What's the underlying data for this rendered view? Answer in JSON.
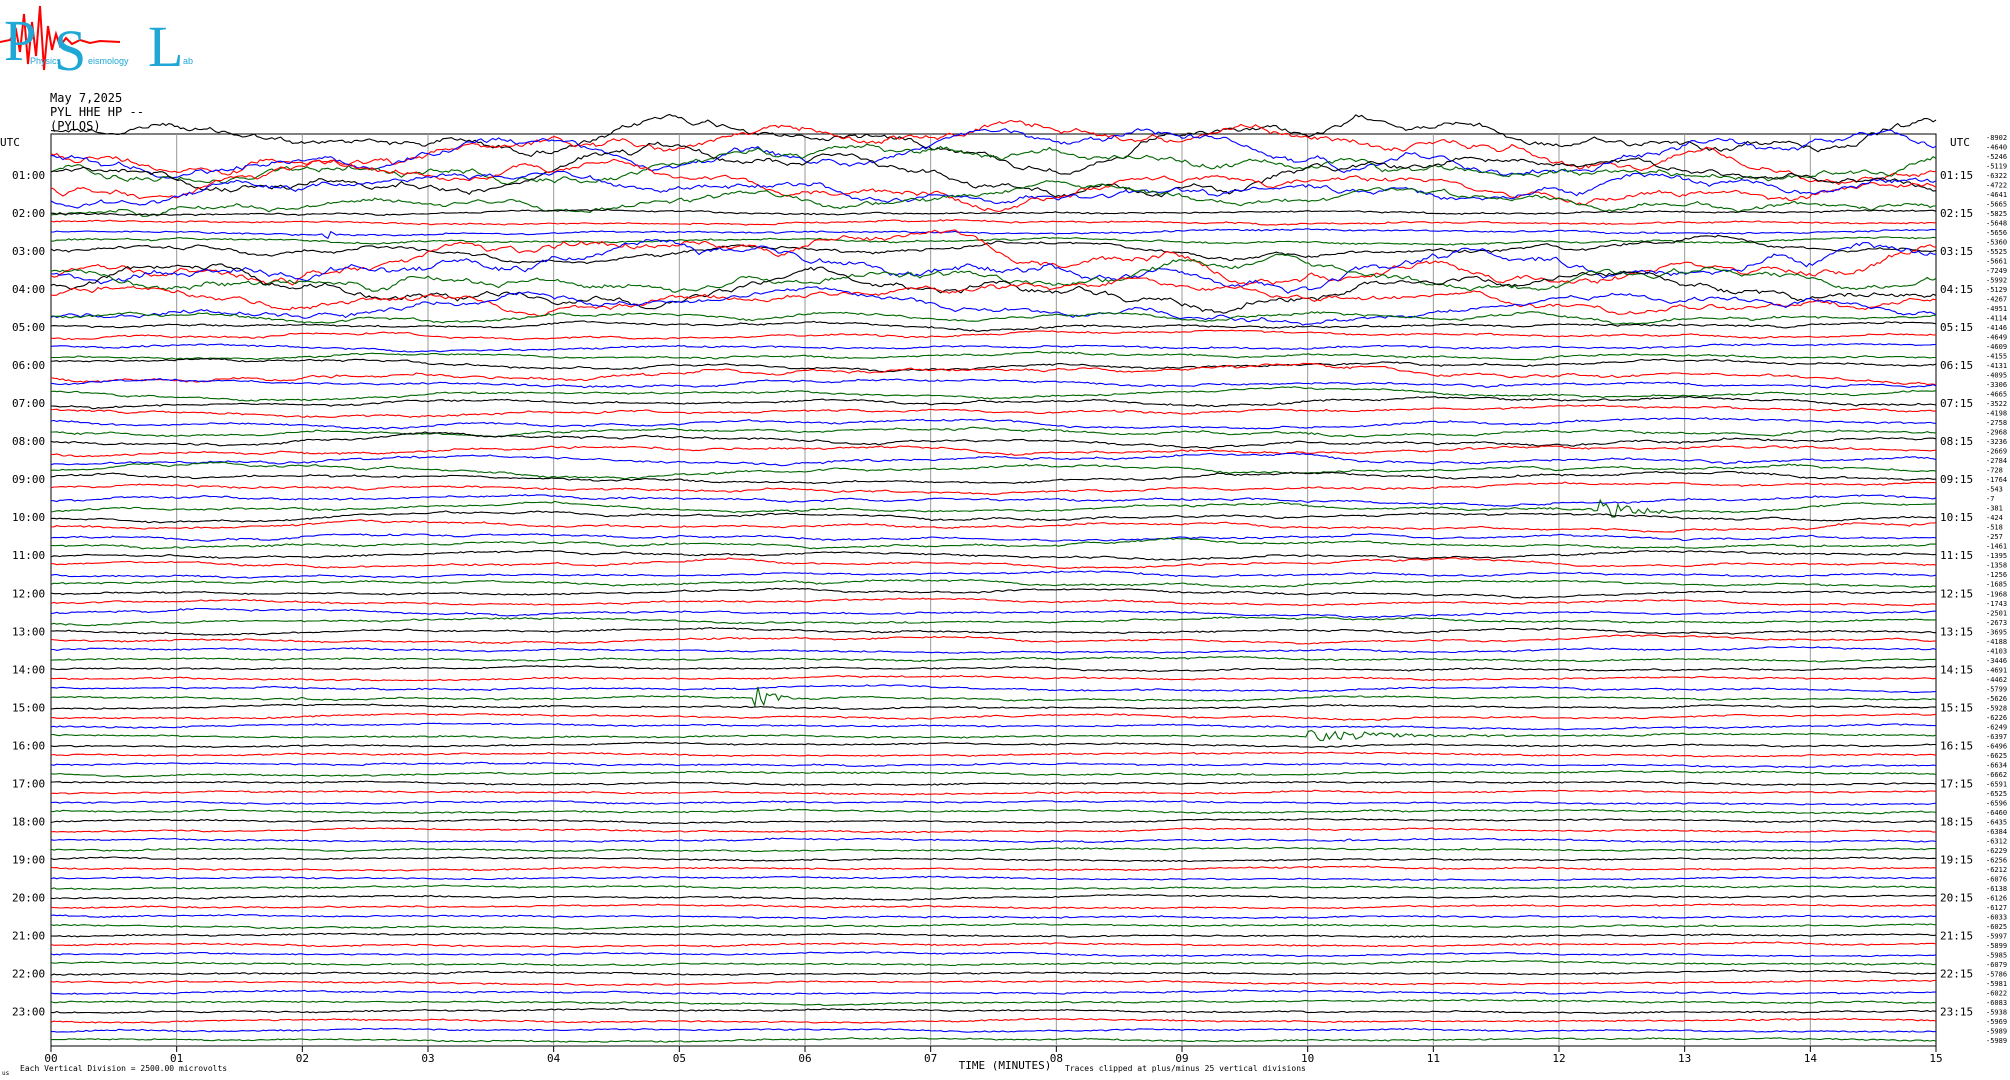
{
  "logo": {
    "letters": [
      "P",
      "S",
      "L"
    ],
    "words": [
      "Physics",
      "eismology",
      "ab"
    ],
    "colors": {
      "main": "#1fa7d6",
      "trace": "#ff0000"
    }
  },
  "header": {
    "date": "May 7,2025",
    "station": "PYL HHE HP --",
    "location": "(PYLOS)"
  },
  "chart_data": {
    "type": "line",
    "subtype": "helicorder",
    "left_axis_label": "UTC",
    "right_axis_label": "UTC",
    "left_times": [
      "01:00",
      "02:00",
      "03:00",
      "04:00",
      "05:00",
      "06:00",
      "07:00",
      "08:00",
      "09:00",
      "10:00",
      "11:00",
      "12:00",
      "13:00",
      "14:00",
      "15:00",
      "16:00",
      "17:00",
      "18:00",
      "19:00",
      "20:00",
      "21:00",
      "22:00",
      "23:00"
    ],
    "right_times": [
      "01:15",
      "02:15",
      "03:15",
      "04:15",
      "05:15",
      "06:15",
      "07:15",
      "08:15",
      "09:15",
      "10:15",
      "11:15",
      "12:15",
      "13:15",
      "14:15",
      "15:15",
      "16:15",
      "17:15",
      "18:15",
      "19:15",
      "20:15",
      "21:15",
      "22:15",
      "23:15"
    ],
    "x_ticks": [
      "00",
      "01",
      "02",
      "03",
      "04",
      "05",
      "06",
      "07",
      "08",
      "09",
      "10",
      "11",
      "12",
      "13",
      "14",
      "15"
    ],
    "xlabel": "TIME (MINUTES)",
    "note_left": "Each Vertical Division = 2500.00 microvolts",
    "note_right": "Traces clipped at plus/minus 25 vertical divisions",
    "corner_label": "us",
    "xlim": [
      0,
      15
    ],
    "traces_per_hour": 4,
    "trace_count": 96,
    "color_cycle": [
      "#000000",
      "#ff0000",
      "#0000ff",
      "#006600"
    ],
    "offsets": [
      -8902,
      -4640,
      -5246,
      -5119,
      -6322,
      -4722,
      -4641,
      -5665,
      -5825,
      -5648,
      -5656,
      -5360,
      -5525,
      -5661,
      -7249,
      -5992,
      -5129,
      -4267,
      -4951,
      -4114,
      -4146,
      -4649,
      -4609,
      -4155,
      -4131,
      -4095,
      -3306,
      -4665,
      -3522,
      -4198,
      -2758,
      -2968,
      -3236,
      -2669,
      -2784,
      -728,
      -1764,
      -543,
      -7,
      -381,
      -424,
      -518,
      -257,
      -1461,
      -1395,
      -1358,
      -1256,
      -1685,
      -1968,
      -1743,
      -2501,
      -2673,
      -3695,
      -4188,
      -4103,
      -3446,
      -4691,
      -4462,
      -5799,
      -5626,
      -5928,
      -6226,
      -6249,
      -6397,
      -6496,
      -6625,
      -6634,
      -6662,
      -6591,
      -6525,
      -6596,
      -6460,
      -6435,
      -6384,
      -6312,
      -6229,
      -6256,
      -6212,
      -6076,
      -6138,
      -6126,
      -6127,
      -6033,
      -6025,
      -5997,
      -5899,
      -5985,
      -6079,
      -5786,
      -5981,
      -6022,
      -6083,
      -5938,
      -5969,
      -5989,
      -5989
    ],
    "activity": [
      13,
      13,
      13,
      12,
      12,
      12,
      11,
      10,
      1.5,
      1.5,
      1.5,
      2.5,
      6,
      14,
      14,
      12,
      12,
      10,
      9,
      5,
      3,
      2.5,
      2.5,
      2.5,
      3,
      5,
      3,
      2.5,
      3,
      3,
      3,
      3.5,
      3.5,
      3.5,
      3.5,
      3.5,
      3,
      3,
      3,
      3,
      3,
      3,
      2.5,
      2.5,
      2.5,
      2.5,
      2,
      2,
      2,
      2,
      2,
      2,
      2,
      2,
      1.5,
      1.5,
      1.5,
      1.5,
      1.5,
      1.5,
      1.5,
      1.5,
      1.2,
      1.2,
      1.2,
      1.2,
      1.2,
      1.2,
      1.2,
      1.2,
      1.2,
      1.2,
      1.2,
      1.2,
      1.1,
      1.1,
      1.1,
      1.1,
      1.1,
      1.1,
      1.1,
      1.1,
      1.1,
      1.1,
      1.1,
      1.1,
      1.1,
      1.1,
      1.1,
      1.1,
      1.1,
      1.1,
      1.1,
      1.1,
      1.1,
      1.1
    ],
    "events": [
      {
        "trace": 10,
        "minute": 2.18,
        "amplitude": 8,
        "duration": 0.1
      },
      {
        "trace": 16,
        "minute": 3.2,
        "amplitude": 5,
        "duration": 0.1
      },
      {
        "trace": 39,
        "minute": 12.3,
        "amplitude": 12,
        "duration": 0.6
      },
      {
        "trace": 59,
        "minute": 5.6,
        "amplitude": 14,
        "duration": 0.3
      },
      {
        "trace": 59,
        "minute": 1.97,
        "amplitude": 5,
        "duration": 0.08
      },
      {
        "trace": 63,
        "minute": 10.0,
        "amplitude": 6,
        "duration": 1.6
      },
      {
        "trace": 74,
        "minute": 10.3,
        "amplitude": 3,
        "duration": 0.1
      },
      {
        "trace": 74,
        "minute": 11.5,
        "amplitude": 3,
        "duration": 0.1
      }
    ]
  }
}
